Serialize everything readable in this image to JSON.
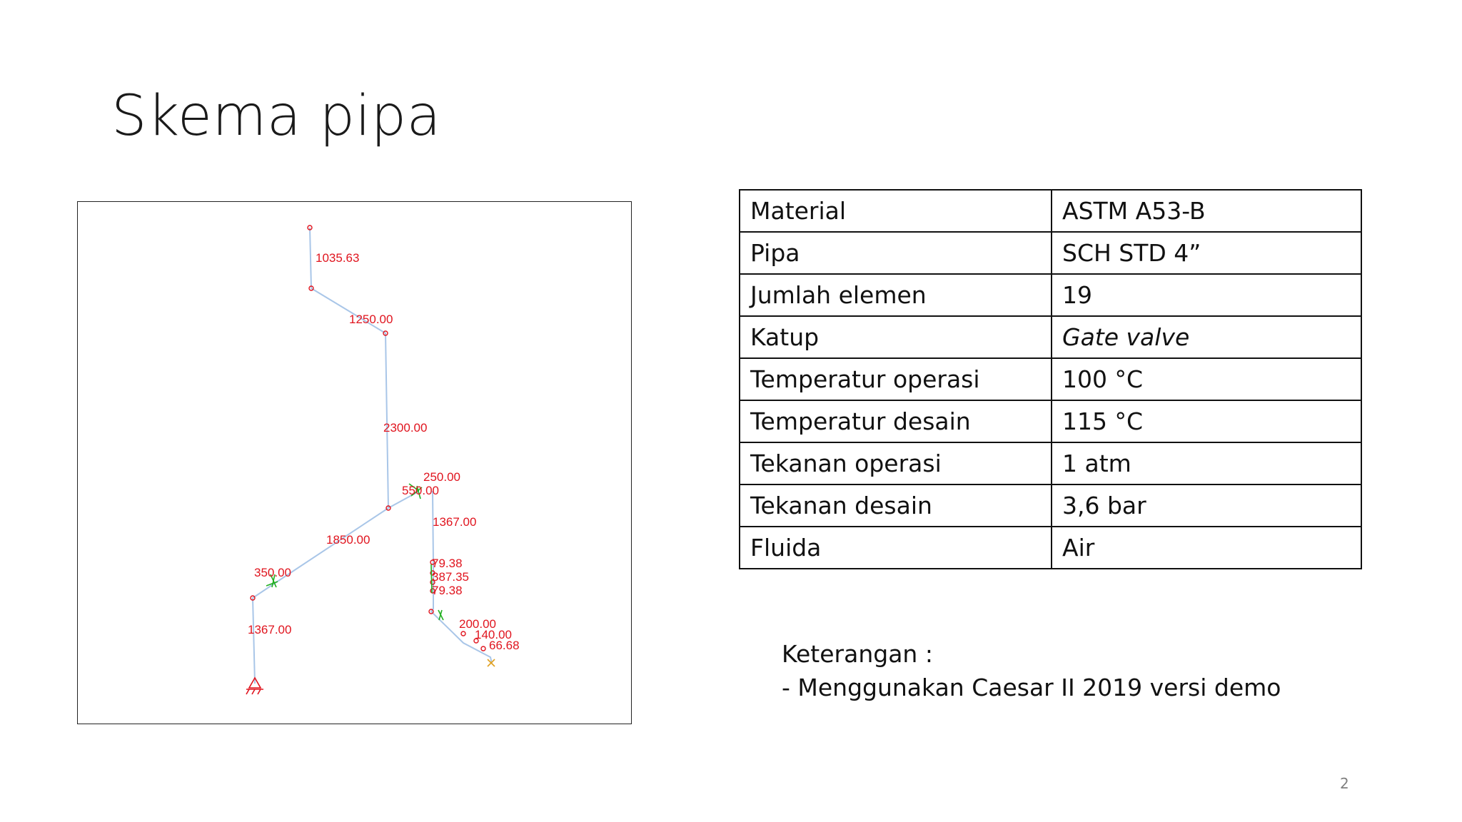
{
  "title": "Skema pipa",
  "figure": {
    "dimension_labels": [
      "1035.63",
      "1250.00",
      "2300.00",
      "250.00",
      "550.00",
      "1367.00",
      "1850.00",
      "350.00",
      "79.38",
      "387.35",
      "79.38",
      "1367.00",
      "200.00",
      "140.00",
      "66.68"
    ]
  },
  "table": {
    "rows": [
      {
        "key": "Material",
        "value": "ASTM A53-B"
      },
      {
        "key": "Pipa",
        "value": "SCH STD 4”"
      },
      {
        "key": "Jumlah elemen",
        "value": "19"
      },
      {
        "key": "Katup",
        "value": "Gate valve"
      },
      {
        "key": "Temperatur operasi",
        "value": "100 °C"
      },
      {
        "key": "Temperatur desain",
        "value": "115 °C"
      },
      {
        "key": "Tekanan operasi",
        "value": "1 atm"
      },
      {
        "key": "Tekanan desain",
        "value": "3,6 bar"
      },
      {
        "key": "Fluida",
        "value": "Air"
      }
    ]
  },
  "note": {
    "heading": "Keterangan :",
    "line1": "- Menggunakan Caesar II 2019 versi demo"
  },
  "page_number": "2"
}
